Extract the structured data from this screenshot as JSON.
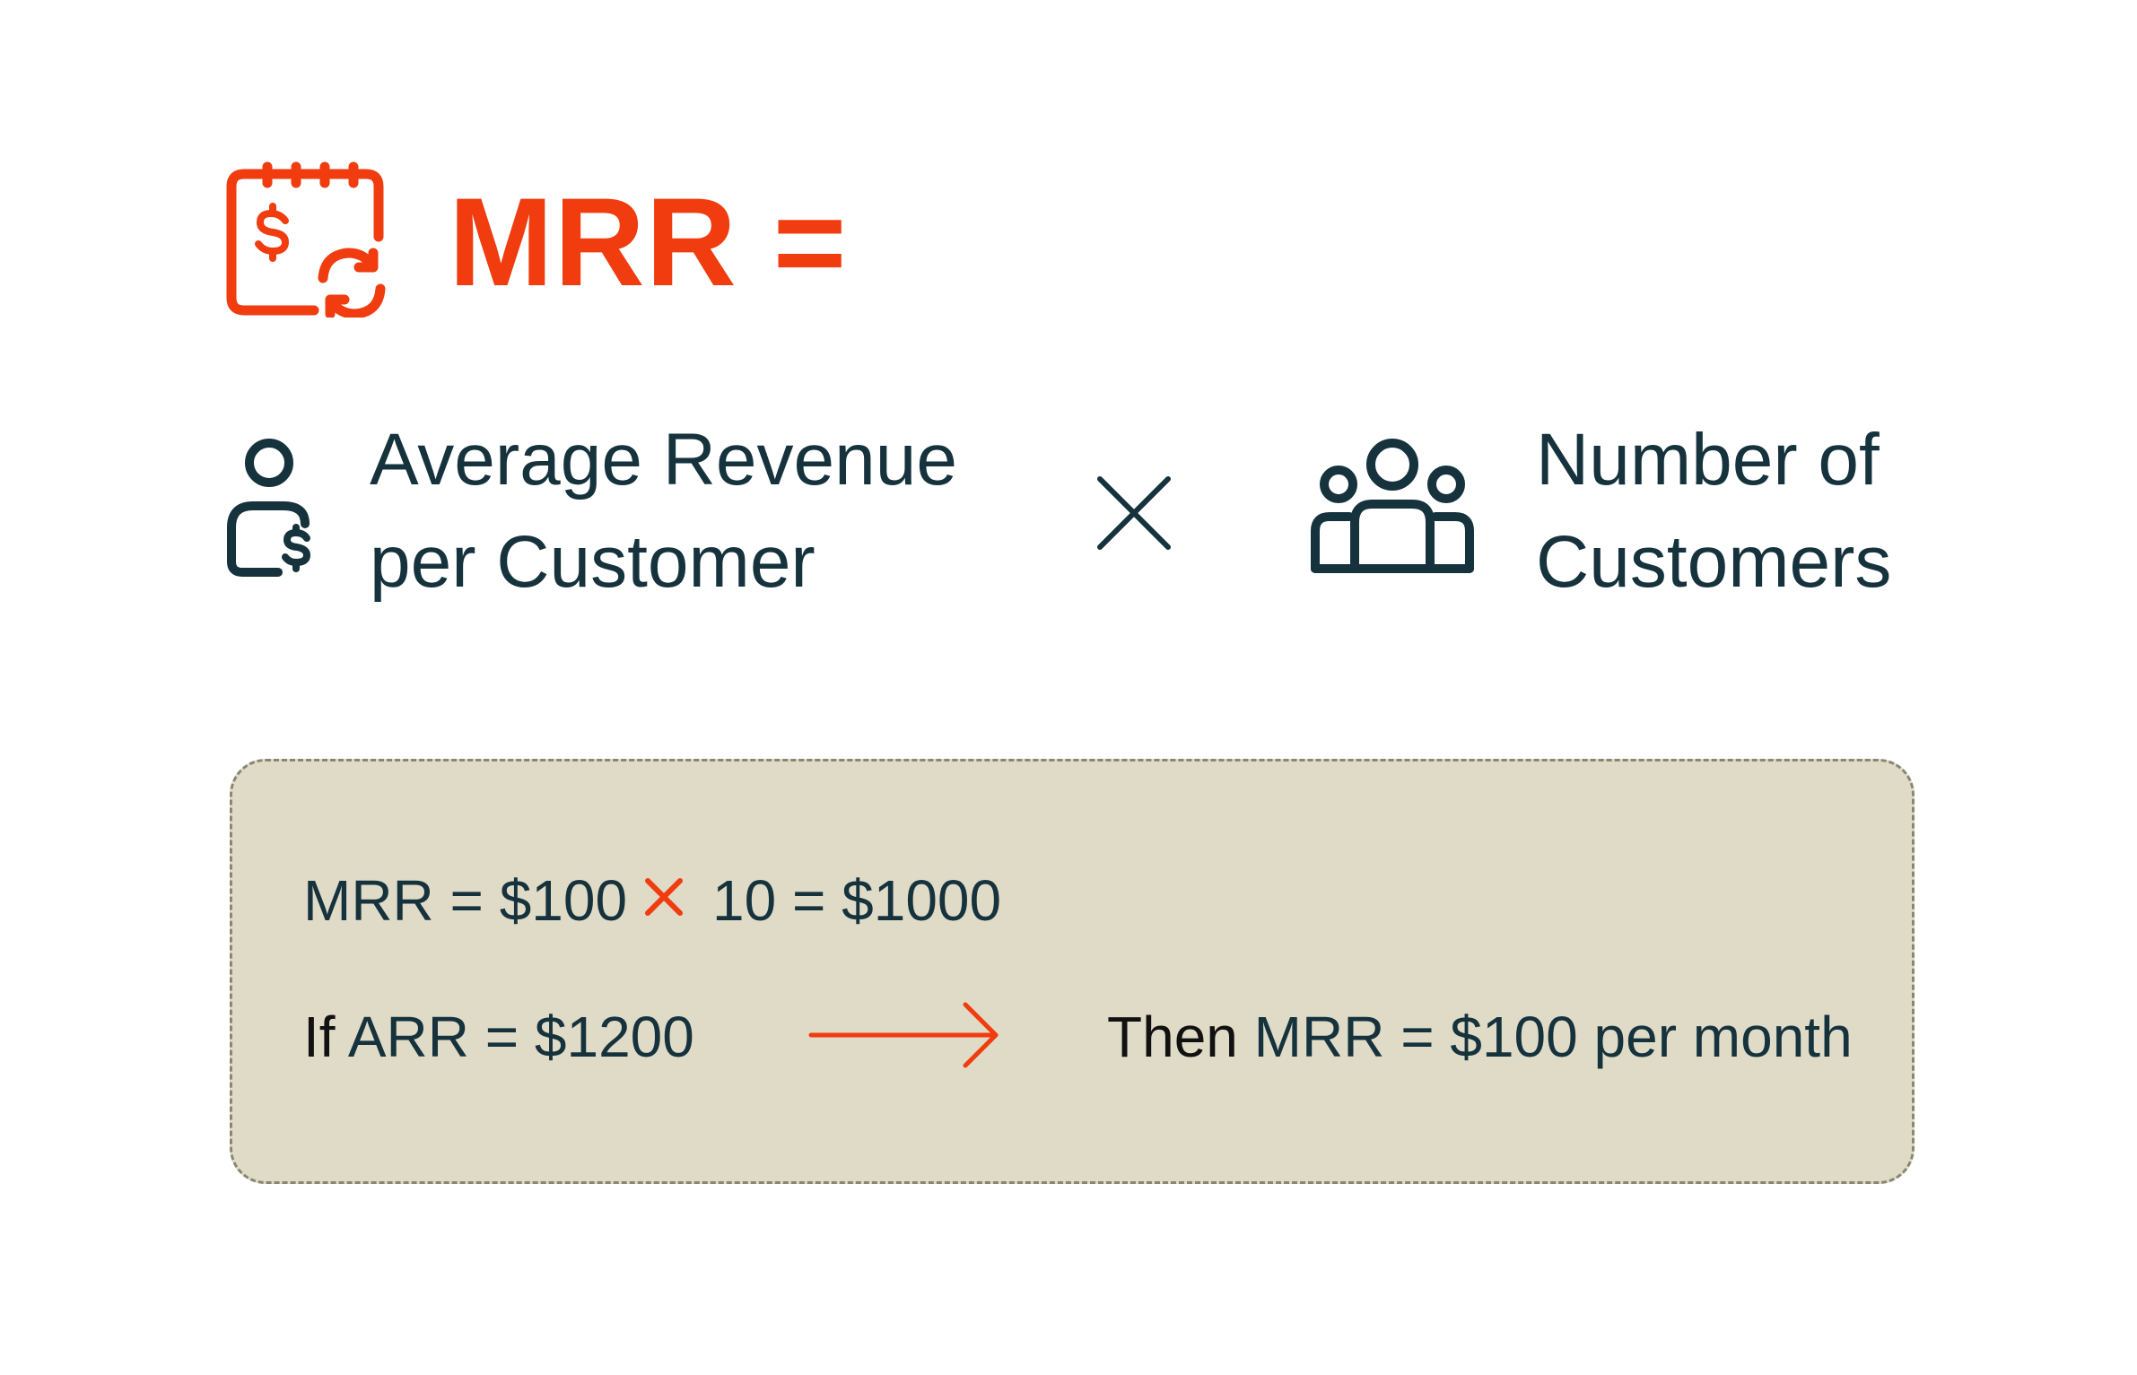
{
  "header": {
    "title": "MRR =",
    "icon": "calendar-dollar-recurring-icon"
  },
  "formula": {
    "left_term": {
      "icon": "person-dollar-icon",
      "line1": "Average Revenue",
      "line2": "per Customer"
    },
    "operator_icon": "multiply-icon",
    "right_term": {
      "icon": "group-of-people-icon",
      "line1": "Number of",
      "line2": "Customers"
    }
  },
  "example": {
    "line1_left": "MRR = $100",
    "line1_operator_icon": "multiply-icon",
    "line1_right": "10 = $1000",
    "line2_if_word": "If",
    "line2_if_rest": "ARR = $1200",
    "arrow_icon": "arrow-right-icon",
    "line2_then_word": "Then",
    "line2_then_rest": "MRR = $100 per month"
  },
  "colors": {
    "accent": "#f03c0f",
    "text_dark": "#15323d",
    "box_background": "#e0dbc7",
    "box_border": "#8a8670"
  }
}
